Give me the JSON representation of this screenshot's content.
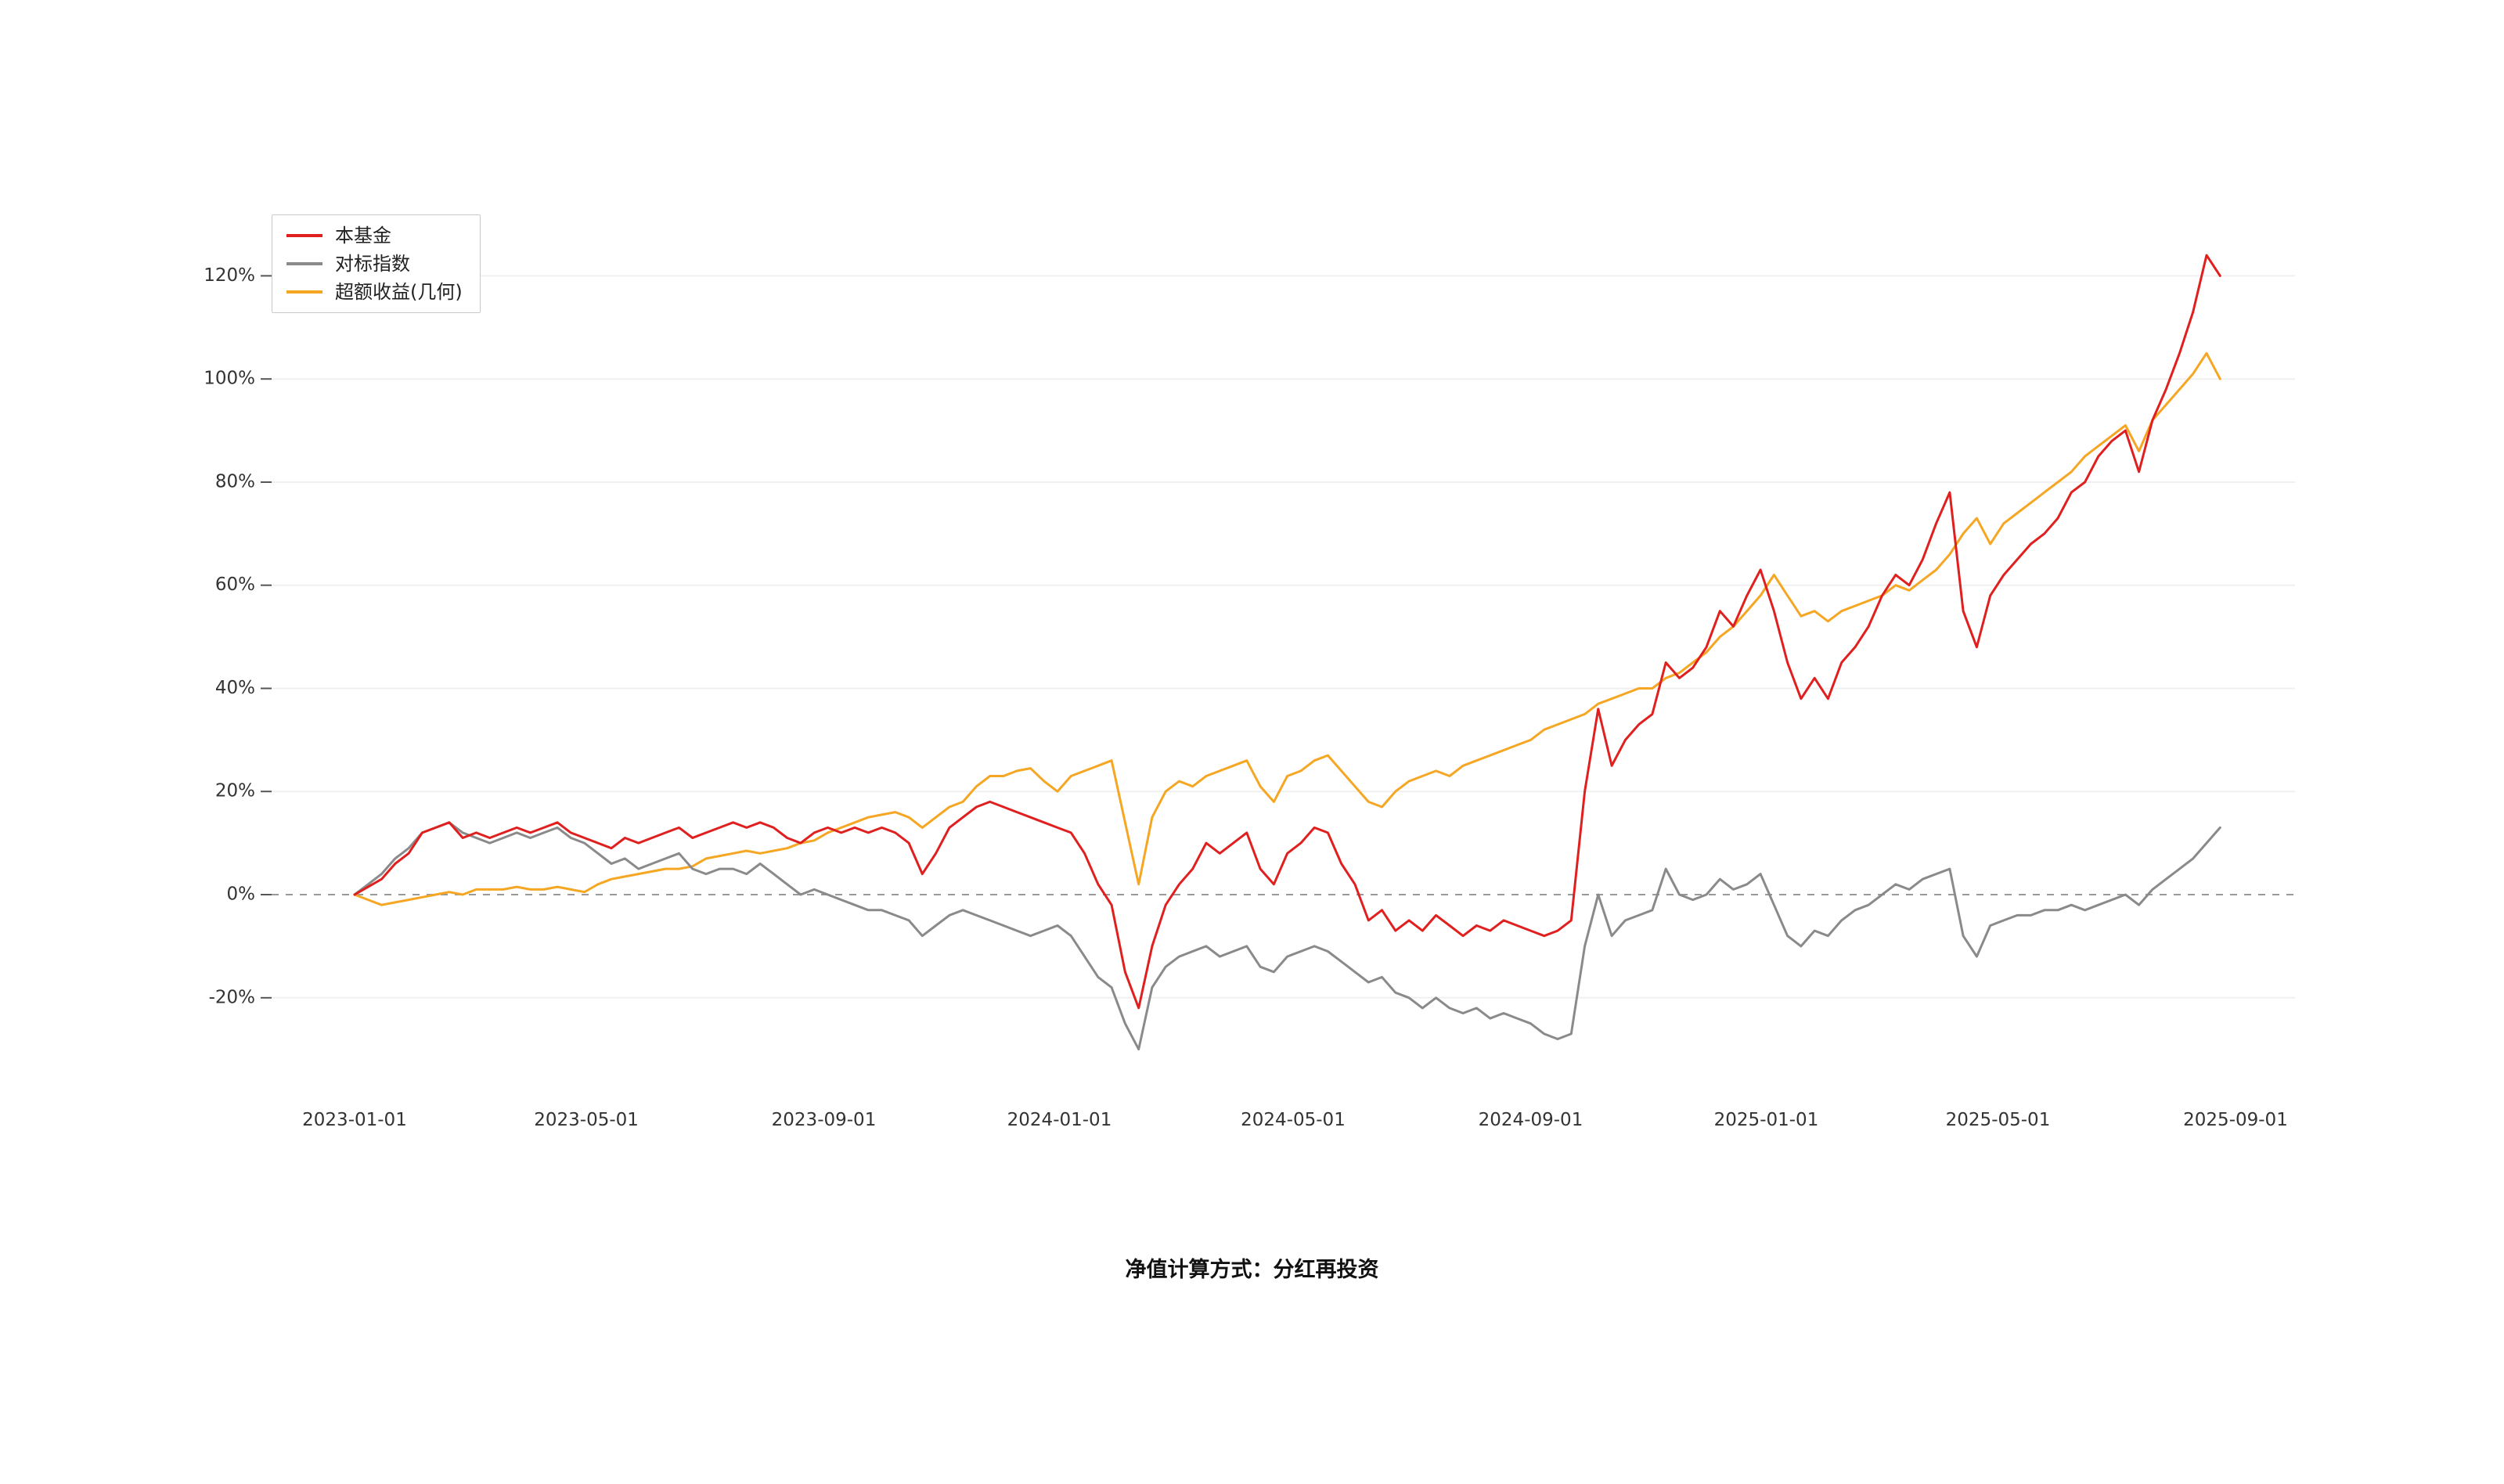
{
  "footnote": "净值计算方式：分红再投资",
  "chart_data": {
    "type": "line",
    "title": "",
    "xlabel": "",
    "ylabel": "",
    "grid": true,
    "legend_position": "top-left",
    "zero_line": {
      "style": "dashed",
      "color": "#999999"
    },
    "x_range": [
      "2023-01-01",
      "2025-09-01"
    ],
    "ylim": [
      -35,
      132
    ],
    "y_ticks": [
      {
        "value": -20,
        "label": "-20%"
      },
      {
        "value": 0,
        "label": "0%"
      },
      {
        "value": 20,
        "label": "20%"
      },
      {
        "value": 40,
        "label": "40%"
      },
      {
        "value": 60,
        "label": "60%"
      },
      {
        "value": 80,
        "label": "80%"
      },
      {
        "value": 100,
        "label": "100%"
      },
      {
        "value": 120,
        "label": "120%"
      }
    ],
    "x_ticks": [
      "2023-01-01",
      "2023-05-01",
      "2023-09-01",
      "2024-01-01",
      "2024-05-01",
      "2024-09-01",
      "2025-01-01",
      "2025-05-01",
      "2025-09-01"
    ],
    "x": [
      "2023-01-01",
      "2023-01-08",
      "2023-01-15",
      "2023-01-22",
      "2023-01-29",
      "2023-02-05",
      "2023-02-12",
      "2023-02-19",
      "2023-02-26",
      "2023-03-05",
      "2023-03-12",
      "2023-03-19",
      "2023-03-26",
      "2023-04-02",
      "2023-04-09",
      "2023-04-16",
      "2023-04-23",
      "2023-04-30",
      "2023-05-07",
      "2023-05-14",
      "2023-05-21",
      "2023-05-28",
      "2023-06-04",
      "2023-06-11",
      "2023-06-18",
      "2023-06-25",
      "2023-07-02",
      "2023-07-09",
      "2023-07-16",
      "2023-07-23",
      "2023-07-30",
      "2023-08-06",
      "2023-08-13",
      "2023-08-20",
      "2023-08-27",
      "2023-09-03",
      "2023-09-10",
      "2023-09-17",
      "2023-09-24",
      "2023-10-01",
      "2023-10-08",
      "2023-10-15",
      "2023-10-22",
      "2023-10-29",
      "2023-11-05",
      "2023-11-12",
      "2023-11-19",
      "2023-11-26",
      "2023-12-03",
      "2023-12-10",
      "2023-12-17",
      "2023-12-24",
      "2023-12-31",
      "2024-01-07",
      "2024-01-14",
      "2024-01-21",
      "2024-01-28",
      "2024-02-04",
      "2024-02-11",
      "2024-02-18",
      "2024-02-25",
      "2024-03-03",
      "2024-03-10",
      "2024-03-17",
      "2024-03-24",
      "2024-03-31",
      "2024-04-07",
      "2024-04-14",
      "2024-04-21",
      "2024-04-28",
      "2024-05-05",
      "2024-05-12",
      "2024-05-19",
      "2024-05-26",
      "2024-06-02",
      "2024-06-09",
      "2024-06-16",
      "2024-06-23",
      "2024-06-30",
      "2024-07-07",
      "2024-07-14",
      "2024-07-21",
      "2024-07-28",
      "2024-08-04",
      "2024-08-11",
      "2024-08-18",
      "2024-08-25",
      "2024-09-01",
      "2024-09-08",
      "2024-09-15",
      "2024-09-22",
      "2024-09-29",
      "2024-10-06",
      "2024-10-13",
      "2024-10-20",
      "2024-10-27",
      "2024-11-03",
      "2024-11-10",
      "2024-11-17",
      "2024-11-24",
      "2024-12-01",
      "2024-12-08",
      "2024-12-15",
      "2024-12-22",
      "2024-12-29",
      "2025-01-05",
      "2025-01-12",
      "2025-01-19",
      "2025-01-26",
      "2025-02-02",
      "2025-02-09",
      "2025-02-16",
      "2025-02-23",
      "2025-03-02",
      "2025-03-09",
      "2025-03-16",
      "2025-03-23",
      "2025-03-30",
      "2025-04-06",
      "2025-04-13",
      "2025-04-20",
      "2025-04-27",
      "2025-05-04",
      "2025-05-11",
      "2025-05-18",
      "2025-05-25",
      "2025-06-01",
      "2025-06-08",
      "2025-06-15",
      "2025-06-22",
      "2025-06-29",
      "2025-07-06",
      "2025-07-13",
      "2025-07-20",
      "2025-07-27",
      "2025-08-03",
      "2025-08-10",
      "2025-08-17",
      "2025-08-24"
    ],
    "series": [
      {
        "key": "fund",
        "name": "本基金",
        "color": "#e01f1f",
        "values": [
          0,
          1.5,
          3,
          6,
          8,
          12,
          13,
          14,
          11,
          12,
          11,
          12,
          13,
          12,
          13,
          14,
          12,
          11,
          10,
          9,
          11,
          10,
          11,
          12,
          13,
          11,
          12,
          13,
          14,
          13,
          14,
          13,
          11,
          10,
          12,
          13,
          12,
          13,
          12,
          13,
          12,
          10,
          4,
          8,
          13,
          15,
          17,
          18,
          17,
          16,
          15,
          14,
          13,
          12,
          8,
          2,
          -2,
          -15,
          -22,
          -10,
          -2,
          2,
          5,
          10,
          8,
          10,
          12,
          5,
          2,
          8,
          10,
          13,
          12,
          6,
          2,
          -5,
          -3,
          -7,
          -5,
          -7,
          -4,
          -6,
          -8,
          -6,
          -7,
          -5,
          -6,
          -7,
          -8,
          -7,
          -5,
          20,
          36,
          25,
          30,
          33,
          35,
          45,
          42,
          44,
          48,
          55,
          52,
          58,
          63,
          55,
          45,
          38,
          42,
          38,
          45,
          48,
          52,
          58,
          62,
          60,
          65,
          72,
          78,
          55,
          48,
          58,
          62,
          65,
          68,
          70,
          73,
          78,
          80,
          85,
          88,
          90,
          82,
          92,
          98,
          105,
          113,
          124,
          120
        ]
      },
      {
        "key": "benchmark",
        "name": "对标指数",
        "color": "#8a8a8a",
        "values": [
          0,
          2,
          4,
          7,
          9,
          12,
          13,
          14,
          12,
          11,
          10,
          11,
          12,
          11,
          12,
          13,
          11,
          10,
          8,
          6,
          7,
          5,
          6,
          7,
          8,
          5,
          4,
          5,
          5,
          4,
          6,
          4,
          2,
          0,
          1,
          0,
          -1,
          -2,
          -3,
          -3,
          -4,
          -5,
          -8,
          -6,
          -4,
          -3,
          -4,
          -5,
          -6,
          -7,
          -8,
          -7,
          -6,
          -8,
          -12,
          -16,
          -18,
          -25,
          -30,
          -18,
          -14,
          -12,
          -11,
          -10,
          -12,
          -11,
          -10,
          -14,
          -15,
          -12,
          -11,
          -10,
          -11,
          -13,
          -15,
          -17,
          -16,
          -19,
          -20,
          -22,
          -20,
          -22,
          -23,
          -22,
          -24,
          -23,
          -24,
          -25,
          -27,
          -28,
          -27,
          -10,
          0,
          -8,
          -5,
          -4,
          -3,
          5,
          0,
          -1,
          0,
          3,
          1,
          2,
          4,
          -2,
          -8,
          -10,
          -7,
          -8,
          -5,
          -3,
          -2,
          0,
          2,
          1,
          3,
          4,
          5,
          -8,
          -12,
          -6,
          -5,
          -4,
          -4,
          -3,
          -3,
          -2,
          -3,
          -2,
          -1,
          0,
          -2,
          1,
          3,
          5,
          7,
          10,
          13
        ]
      },
      {
        "key": "excess-return",
        "name": "超额收益(几何)",
        "color": "#f5a623",
        "values": [
          0,
          -1,
          -2,
          -1.5,
          -1,
          -0.5,
          0,
          0.5,
          0,
          1,
          1,
          1,
          1.5,
          1,
          1,
          1.5,
          1,
          0.5,
          2,
          3,
          3.5,
          4,
          4.5,
          5,
          5,
          5.5,
          7,
          7.5,
          8,
          8.5,
          8,
          8.5,
          9,
          10,
          10.5,
          12,
          13,
          14,
          15,
          15.5,
          16,
          15,
          13,
          15,
          17,
          18,
          21,
          23,
          23,
          24,
          24.5,
          22,
          20,
          23,
          24,
          25,
          26,
          14,
          2,
          15,
          20,
          22,
          21,
          23,
          24,
          25,
          26,
          21,
          18,
          23,
          24,
          26,
          27,
          24,
          21,
          18,
          17,
          20,
          22,
          23,
          24,
          23,
          25,
          26,
          27,
          28,
          29,
          30,
          32,
          33,
          34,
          35,
          37,
          38,
          39,
          40,
          40,
          42,
          43,
          45,
          47,
          50,
          52,
          55,
          58,
          62,
          58,
          54,
          55,
          53,
          55,
          56,
          57,
          58,
          60,
          59,
          61,
          63,
          66,
          70,
          73,
          68,
          72,
          74,
          76,
          78,
          80,
          82,
          85,
          87,
          89,
          91,
          86,
          92,
          95,
          98,
          101,
          105,
          100
        ]
      }
    ]
  }
}
